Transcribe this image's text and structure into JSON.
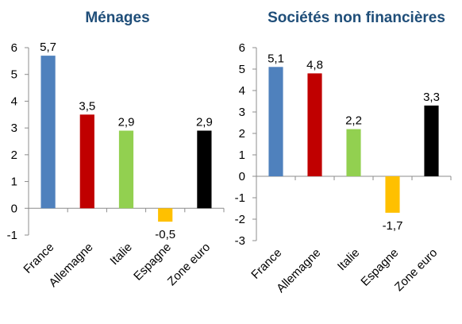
{
  "chart_data": [
    {
      "type": "bar",
      "title": "Ménages",
      "categories": [
        "France",
        "Allemagne",
        "Italie",
        "Espagne",
        "Zone euro"
      ],
      "values": [
        5.7,
        3.5,
        2.9,
        -0.5,
        2.9
      ],
      "data_labels": [
        "5,7",
        "3,5",
        "2,9",
        "-0,5",
        "2,9"
      ],
      "colors": [
        "#4f81bd",
        "#c00000",
        "#92d050",
        "#ffc000",
        "#000000"
      ],
      "ylim": [
        -1,
        6
      ],
      "yticks": [
        -1,
        0,
        1,
        2,
        3,
        4,
        5,
        6
      ],
      "ytick_labels": [
        "-1",
        "0",
        "1",
        "2",
        "3",
        "4",
        "5",
        "6"
      ],
      "xlabel": "",
      "ylabel": "",
      "grid": false
    },
    {
      "type": "bar",
      "title": "Sociétés non financières",
      "categories": [
        "France",
        "Allemagne",
        "Italie",
        "Espagne",
        "Zone euro"
      ],
      "values": [
        5.1,
        4.8,
        2.2,
        -1.7,
        3.3
      ],
      "data_labels": [
        "5,1",
        "4,8",
        "2,2",
        "-1,7",
        "3,3"
      ],
      "colors": [
        "#4f81bd",
        "#c00000",
        "#92d050",
        "#ffc000",
        "#000000"
      ],
      "ylim": [
        -3,
        6
      ],
      "yticks": [
        -3,
        -2,
        -1,
        0,
        1,
        2,
        3,
        4,
        5,
        6
      ],
      "ytick_labels": [
        "-3",
        "-2",
        "-1",
        "0",
        "1",
        "2",
        "3",
        "4",
        "5",
        "6"
      ],
      "xlabel": "",
      "ylabel": "",
      "grid": false
    }
  ]
}
